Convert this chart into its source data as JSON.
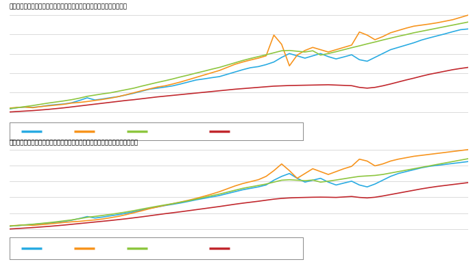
{
  "title1": "不動産価格指数（商業用不動産・総合／用途地域別・季節調整値）全国",
  "title2": "不動産価格指数（商業用不動産・総合／用途地域別・季節調整値）三大都市圈",
  "colors": [
    "#29ABE2",
    "#F7941D",
    "#8DC63F",
    "#C1272D"
  ],
  "background": "#FFFFFF",
  "grid_color": "#CCCCCC",
  "line_width": 1.2
}
